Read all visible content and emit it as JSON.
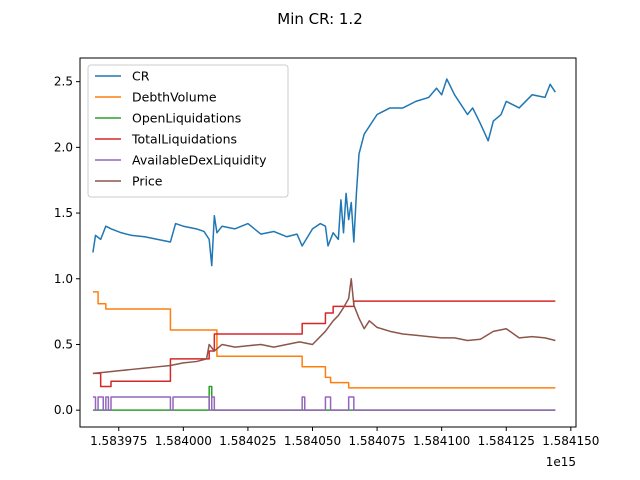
{
  "title": "Min CR: 1.2",
  "x_offset_label": "1e15",
  "chart_data": {
    "type": "line",
    "title": "Min CR: 1.2",
    "xlabel": "",
    "ylabel": "",
    "xlim": [
      1.58396,
      1.584152
    ],
    "ylim": [
      -0.128,
      2.68
    ],
    "x_unit_multiplier": "1e15",
    "x_ticks": [
      1.583975,
      1.584,
      1.584025,
      1.58405,
      1.584075,
      1.5841,
      1.584125,
      1.58415
    ],
    "x_tick_labels": [
      "1.583975",
      "1.584000",
      "1.584025",
      "1.584050",
      "1.584075",
      "1.584100",
      "1.584125",
      "1.584150"
    ],
    "y_ticks": [
      0.0,
      0.5,
      1.0,
      1.5,
      2.0,
      2.5
    ],
    "y_tick_labels": [
      "0.0",
      "0.5",
      "1.0",
      "1.5",
      "2.0",
      "2.5"
    ],
    "grid": false,
    "legend_position": "upper left",
    "series": [
      {
        "name": "CR",
        "color": "#1f77b4",
        "x": [
          1.583965,
          1.583966,
          1.583968,
          1.58397,
          1.583972,
          1.583976,
          1.58398,
          1.583985,
          1.58399,
          1.583995,
          1.583997,
          1.584,
          1.584005,
          1.584008,
          1.58401,
          1.584011,
          1.584012,
          1.584013,
          1.584015,
          1.58402,
          1.584025,
          1.58403,
          1.584035,
          1.58404,
          1.584044,
          1.584046,
          1.58405,
          1.584053,
          1.584055,
          1.584056,
          1.584058,
          1.58406,
          1.584061,
          1.584062,
          1.584063,
          1.584064,
          1.584065,
          1.584066,
          1.584067,
          1.584068,
          1.58407,
          1.584075,
          1.58408,
          1.584085,
          1.58409,
          1.584095,
          1.584098,
          1.5841,
          1.584102,
          1.584105,
          1.58411,
          1.584112,
          1.584115,
          1.584118,
          1.58412,
          1.584123,
          1.584125,
          1.58413,
          1.584135,
          1.58414,
          1.584142,
          1.584144
        ],
        "y": [
          1.2,
          1.33,
          1.3,
          1.4,
          1.38,
          1.35,
          1.33,
          1.32,
          1.3,
          1.28,
          1.42,
          1.4,
          1.38,
          1.36,
          1.3,
          1.1,
          1.48,
          1.35,
          1.4,
          1.38,
          1.42,
          1.34,
          1.36,
          1.32,
          1.34,
          1.25,
          1.38,
          1.42,
          1.4,
          1.25,
          1.35,
          1.3,
          1.6,
          1.35,
          1.65,
          1.45,
          1.58,
          1.28,
          1.65,
          1.95,
          2.1,
          2.25,
          2.3,
          2.3,
          2.35,
          2.38,
          2.45,
          2.4,
          2.52,
          2.4,
          2.25,
          2.3,
          2.18,
          2.05,
          2.2,
          2.25,
          2.35,
          2.3,
          2.4,
          2.38,
          2.48,
          2.42
        ]
      },
      {
        "name": "DebthVolume",
        "color": "#ff7f0e",
        "x": [
          1.583965,
          1.583967,
          1.583967,
          1.58397,
          1.58397,
          1.583995,
          1.583995,
          1.584013,
          1.584013,
          1.584046,
          1.584046,
          1.584055,
          1.584055,
          1.584057,
          1.584057,
          1.584064,
          1.584064,
          1.584144
        ],
        "y": [
          0.9,
          0.9,
          0.81,
          0.81,
          0.77,
          0.77,
          0.61,
          0.61,
          0.41,
          0.41,
          0.33,
          0.33,
          0.25,
          0.25,
          0.21,
          0.21,
          0.17,
          0.17
        ]
      },
      {
        "name": "OpenLiquidations",
        "color": "#2ca02c",
        "x": [
          1.583965,
          1.58401,
          1.58401,
          1.584011,
          1.584011,
          1.584144
        ],
        "y": [
          0.0,
          0.0,
          0.18,
          0.18,
          0.0,
          0.0
        ]
      },
      {
        "name": "TotalLiquidations",
        "color": "#d62728",
        "x": [
          1.583965,
          1.583968,
          1.583968,
          1.583972,
          1.583972,
          1.583995,
          1.583995,
          1.58401,
          1.58401,
          1.584012,
          1.584012,
          1.584046,
          1.584046,
          1.584055,
          1.584055,
          1.584058,
          1.584058,
          1.584066,
          1.584066,
          1.584144
        ],
        "y": [
          0.28,
          0.28,
          0.18,
          0.18,
          0.22,
          0.22,
          0.39,
          0.39,
          0.45,
          0.45,
          0.58,
          0.58,
          0.66,
          0.66,
          0.74,
          0.74,
          0.79,
          0.79,
          0.83,
          0.83
        ]
      },
      {
        "name": "AvailableDexLiquidity",
        "color": "#9467bd",
        "x": [
          1.583965,
          1.583966,
          1.583966,
          1.583967,
          1.583967,
          1.583969,
          1.583969,
          1.58397,
          1.58397,
          1.583971,
          1.583971,
          1.583972,
          1.583972,
          1.583995,
          1.583995,
          1.583996,
          1.583996,
          1.58401,
          1.58401,
          1.584011,
          1.584011,
          1.584012,
          1.584012,
          1.584046,
          1.584046,
          1.584047,
          1.584047,
          1.584055,
          1.584055,
          1.584057,
          1.584057,
          1.584064,
          1.584064,
          1.584066,
          1.584066,
          1.584144
        ],
        "y": [
          0.1,
          0.1,
          0.0,
          0.0,
          0.1,
          0.1,
          0.0,
          0.0,
          0.1,
          0.1,
          0.0,
          0.0,
          0.1,
          0.1,
          0.0,
          0.0,
          0.1,
          0.1,
          0.0,
          0.0,
          0.1,
          0.1,
          0.0,
          0.0,
          0.1,
          0.1,
          0.0,
          0.0,
          0.1,
          0.1,
          0.0,
          0.0,
          0.1,
          0.1,
          0.0,
          0.0
        ]
      },
      {
        "name": "Price",
        "color": "#8c564b",
        "x": [
          1.583965,
          1.58397,
          1.583975,
          1.58398,
          1.583985,
          1.58399,
          1.583995,
          1.584,
          1.584005,
          1.584009,
          1.58401,
          1.584012,
          1.584015,
          1.58402,
          1.584025,
          1.58403,
          1.584035,
          1.58404,
          1.584045,
          1.58405,
          1.584055,
          1.584058,
          1.58406,
          1.584062,
          1.584064,
          1.584065,
          1.584066,
          1.584068,
          1.58407,
          1.584072,
          1.584075,
          1.58408,
          1.584085,
          1.58409,
          1.584095,
          1.5841,
          1.584105,
          1.58411,
          1.584115,
          1.58412,
          1.584125,
          1.58413,
          1.584135,
          1.58414,
          1.584144
        ],
        "y": [
          0.28,
          0.29,
          0.3,
          0.31,
          0.32,
          0.33,
          0.34,
          0.36,
          0.37,
          0.39,
          0.5,
          0.45,
          0.5,
          0.48,
          0.49,
          0.5,
          0.48,
          0.5,
          0.52,
          0.5,
          0.6,
          0.68,
          0.72,
          0.78,
          0.85,
          1.0,
          0.8,
          0.7,
          0.62,
          0.68,
          0.63,
          0.6,
          0.58,
          0.57,
          0.56,
          0.55,
          0.55,
          0.53,
          0.54,
          0.6,
          0.62,
          0.55,
          0.56,
          0.55,
          0.53
        ]
      }
    ]
  }
}
